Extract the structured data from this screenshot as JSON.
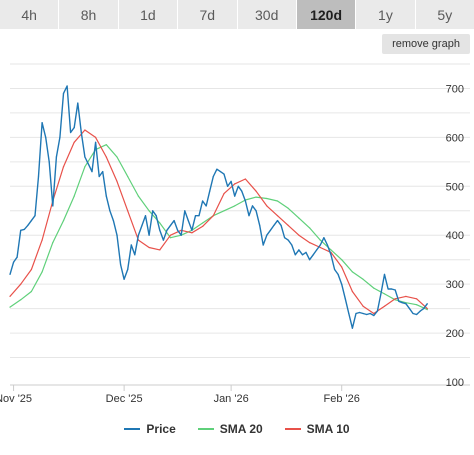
{
  "range_tabs": [
    {
      "label": "4h",
      "active": false
    },
    {
      "label": "8h",
      "active": false
    },
    {
      "label": "1d",
      "active": false
    },
    {
      "label": "7d",
      "active": false
    },
    {
      "label": "30d",
      "active": false
    },
    {
      "label": "120d",
      "active": true
    },
    {
      "label": "1y",
      "active": false
    },
    {
      "label": "5y",
      "active": false
    }
  ],
  "remove_graph_label": "remove graph",
  "colors": {
    "price": "#1f77b4",
    "sma20": "#5fd07a",
    "sma10": "#e8514a",
    "grid": "#e6e6e6"
  },
  "chart_data": {
    "type": "line",
    "ylim": [
      100,
      750
    ],
    "y_ticks": [
      "700",
      "600",
      "500",
      "400",
      "300",
      "200",
      "100"
    ],
    "x_tick_labels": [
      "Nov '25",
      "Dec '25",
      "Jan '26",
      "Feb '26"
    ],
    "x_range": [
      "2025-10-24",
      "2026-02-21"
    ],
    "x_ticks": [
      "2025-10-25",
      "2025-11-25",
      "2025-12-25",
      "2026-01-25"
    ],
    "grid": true,
    "legend_position": "bottom",
    "series": [
      {
        "name": "Price",
        "color": "#1f77b4",
        "points": [
          [
            "2025-10-24",
            320
          ],
          [
            "2025-10-25",
            345
          ],
          [
            "2025-10-26",
            355
          ],
          [
            "2025-10-27",
            410
          ],
          [
            "2025-10-28",
            412
          ],
          [
            "2025-10-29",
            420
          ],
          [
            "2025-10-30",
            430
          ],
          [
            "2025-10-31",
            440
          ],
          [
            "2025-11-01",
            520
          ],
          [
            "2025-11-02",
            630
          ],
          [
            "2025-11-03",
            600
          ],
          [
            "2025-11-04",
            550
          ],
          [
            "2025-11-05",
            460
          ],
          [
            "2025-11-06",
            560
          ],
          [
            "2025-11-07",
            600
          ],
          [
            "2025-11-08",
            690
          ],
          [
            "2025-11-09",
            705
          ],
          [
            "2025-11-10",
            610
          ],
          [
            "2025-11-11",
            620
          ],
          [
            "2025-11-12",
            670
          ],
          [
            "2025-11-13",
            610
          ],
          [
            "2025-11-14",
            560
          ],
          [
            "2025-11-15",
            545
          ],
          [
            "2025-11-16",
            530
          ],
          [
            "2025-11-17",
            590
          ],
          [
            "2025-11-18",
            520
          ],
          [
            "2025-11-19",
            530
          ],
          [
            "2025-11-20",
            480
          ],
          [
            "2025-11-21",
            450
          ],
          [
            "2025-11-22",
            430
          ],
          [
            "2025-11-23",
            400
          ],
          [
            "2025-11-24",
            340
          ],
          [
            "2025-11-25",
            310
          ],
          [
            "2025-11-26",
            330
          ],
          [
            "2025-11-27",
            380
          ],
          [
            "2025-11-28",
            360
          ],
          [
            "2025-11-29",
            400
          ],
          [
            "2025-11-30",
            420
          ],
          [
            "2025-12-01",
            440
          ],
          [
            "2025-12-02",
            400
          ],
          [
            "2025-12-03",
            450
          ],
          [
            "2025-12-04",
            440
          ],
          [
            "2025-12-05",
            410
          ],
          [
            "2025-12-06",
            390
          ],
          [
            "2025-12-07",
            410
          ],
          [
            "2025-12-08",
            420
          ],
          [
            "2025-12-09",
            430
          ],
          [
            "2025-12-10",
            410
          ],
          [
            "2025-12-11",
            400
          ],
          [
            "2025-12-12",
            450
          ],
          [
            "2025-12-13",
            430
          ],
          [
            "2025-12-14",
            410
          ],
          [
            "2025-12-15",
            440
          ],
          [
            "2025-12-16",
            440
          ],
          [
            "2025-12-17",
            470
          ],
          [
            "2025-12-18",
            460
          ],
          [
            "2025-12-19",
            490
          ],
          [
            "2025-12-20",
            520
          ],
          [
            "2025-12-21",
            535
          ],
          [
            "2025-12-22",
            530
          ],
          [
            "2025-12-23",
            525
          ],
          [
            "2025-12-24",
            500
          ],
          [
            "2025-12-25",
            510
          ],
          [
            "2025-12-26",
            480
          ],
          [
            "2025-12-27",
            500
          ],
          [
            "2025-12-28",
            490
          ],
          [
            "2025-12-29",
            470
          ],
          [
            "2025-12-30",
            440
          ],
          [
            "2025-12-31",
            460
          ],
          [
            "2026-01-01",
            450
          ],
          [
            "2026-01-02",
            420
          ],
          [
            "2026-01-03",
            380
          ],
          [
            "2026-01-04",
            400
          ],
          [
            "2026-01-05",
            410
          ],
          [
            "2026-01-06",
            420
          ],
          [
            "2026-01-07",
            430
          ],
          [
            "2026-01-08",
            420
          ],
          [
            "2026-01-09",
            395
          ],
          [
            "2026-01-10",
            390
          ],
          [
            "2026-01-11",
            380
          ],
          [
            "2026-01-12",
            360
          ],
          [
            "2026-01-13",
            370
          ],
          [
            "2026-01-14",
            360
          ],
          [
            "2026-01-15",
            365
          ],
          [
            "2026-01-16",
            350
          ],
          [
            "2026-01-17",
            360
          ],
          [
            "2026-01-18",
            370
          ],
          [
            "2026-01-19",
            380
          ],
          [
            "2026-01-20",
            395
          ],
          [
            "2026-01-21",
            380
          ],
          [
            "2026-01-22",
            360
          ],
          [
            "2026-01-23",
            330
          ],
          [
            "2026-01-24",
            320
          ],
          [
            "2026-01-25",
            300
          ],
          [
            "2026-01-26",
            270
          ],
          [
            "2026-01-27",
            240
          ],
          [
            "2026-01-28",
            210
          ],
          [
            "2026-01-29",
            240
          ],
          [
            "2026-01-30",
            242
          ],
          [
            "2026-01-31",
            240
          ],
          [
            "2026-02-01",
            238
          ],
          [
            "2026-02-02",
            240
          ],
          [
            "2026-02-03",
            236
          ],
          [
            "2026-02-04",
            245
          ],
          [
            "2026-02-05",
            280
          ],
          [
            "2026-02-06",
            320
          ],
          [
            "2026-02-07",
            290
          ],
          [
            "2026-02-08",
            290
          ],
          [
            "2026-02-09",
            288
          ],
          [
            "2026-02-10",
            265
          ],
          [
            "2026-02-11",
            262
          ],
          [
            "2026-02-12",
            260
          ],
          [
            "2026-02-13",
            250
          ],
          [
            "2026-02-14",
            240
          ],
          [
            "2026-02-15",
            238
          ],
          [
            "2026-02-16",
            245
          ],
          [
            "2026-02-17",
            250
          ],
          [
            "2026-02-18",
            260
          ]
        ]
      },
      {
        "name": "SMA 20",
        "color": "#5fd07a",
        "points": [
          [
            "2025-10-24",
            253
          ],
          [
            "2025-10-27",
            268
          ],
          [
            "2025-10-30",
            285
          ],
          [
            "2025-11-02",
            325
          ],
          [
            "2025-11-05",
            385
          ],
          [
            "2025-11-08",
            430
          ],
          [
            "2025-11-11",
            480
          ],
          [
            "2025-11-14",
            540
          ],
          [
            "2025-11-17",
            575
          ],
          [
            "2025-11-20",
            585
          ],
          [
            "2025-11-23",
            560
          ],
          [
            "2025-11-26",
            520
          ],
          [
            "2025-11-29",
            480
          ],
          [
            "2025-12-02",
            450
          ],
          [
            "2025-12-05",
            425
          ],
          [
            "2025-12-08",
            395
          ],
          [
            "2025-12-11",
            400
          ],
          [
            "2025-12-14",
            410
          ],
          [
            "2025-12-17",
            425
          ],
          [
            "2025-12-20",
            440
          ],
          [
            "2025-12-23",
            450
          ],
          [
            "2025-12-26",
            460
          ],
          [
            "2025-12-29",
            472
          ],
          [
            "2026-01-01",
            478
          ],
          [
            "2026-01-04",
            475
          ],
          [
            "2026-01-07",
            470
          ],
          [
            "2026-01-10",
            455
          ],
          [
            "2026-01-13",
            435
          ],
          [
            "2026-01-16",
            415
          ],
          [
            "2026-01-19",
            390
          ],
          [
            "2026-01-22",
            370
          ],
          [
            "2026-01-25",
            350
          ],
          [
            "2026-01-28",
            325
          ],
          [
            "2026-01-31",
            310
          ],
          [
            "2026-02-03",
            292
          ],
          [
            "2026-02-06",
            280
          ],
          [
            "2026-02-09",
            268
          ],
          [
            "2026-02-12",
            262
          ],
          [
            "2026-02-15",
            258
          ],
          [
            "2026-02-18",
            248
          ]
        ]
      },
      {
        "name": "SMA 10",
        "color": "#e8514a",
        "points": [
          [
            "2025-10-24",
            275
          ],
          [
            "2025-10-27",
            300
          ],
          [
            "2025-10-30",
            330
          ],
          [
            "2025-11-02",
            390
          ],
          [
            "2025-11-05",
            470
          ],
          [
            "2025-11-08",
            540
          ],
          [
            "2025-11-11",
            590
          ],
          [
            "2025-11-14",
            615
          ],
          [
            "2025-11-17",
            600
          ],
          [
            "2025-11-20",
            560
          ],
          [
            "2025-11-23",
            510
          ],
          [
            "2025-11-26",
            450
          ],
          [
            "2025-11-29",
            390
          ],
          [
            "2025-12-02",
            375
          ],
          [
            "2025-12-05",
            370
          ],
          [
            "2025-12-08",
            400
          ],
          [
            "2025-12-11",
            410
          ],
          [
            "2025-12-14",
            405
          ],
          [
            "2025-12-17",
            418
          ],
          [
            "2025-12-20",
            440
          ],
          [
            "2025-12-23",
            485
          ],
          [
            "2025-12-26",
            505
          ],
          [
            "2025-12-29",
            515
          ],
          [
            "2026-01-01",
            490
          ],
          [
            "2026-01-04",
            460
          ],
          [
            "2026-01-07",
            440
          ],
          [
            "2026-01-10",
            420
          ],
          [
            "2026-01-13",
            400
          ],
          [
            "2026-01-16",
            385
          ],
          [
            "2026-01-19",
            375
          ],
          [
            "2026-01-22",
            365
          ],
          [
            "2026-01-25",
            335
          ],
          [
            "2026-01-28",
            285
          ],
          [
            "2026-01-31",
            255
          ],
          [
            "2026-02-03",
            240
          ],
          [
            "2026-02-06",
            255
          ],
          [
            "2026-02-09",
            270
          ],
          [
            "2026-02-12",
            275
          ],
          [
            "2026-02-15",
            270
          ],
          [
            "2026-02-18",
            250
          ]
        ]
      }
    ]
  }
}
